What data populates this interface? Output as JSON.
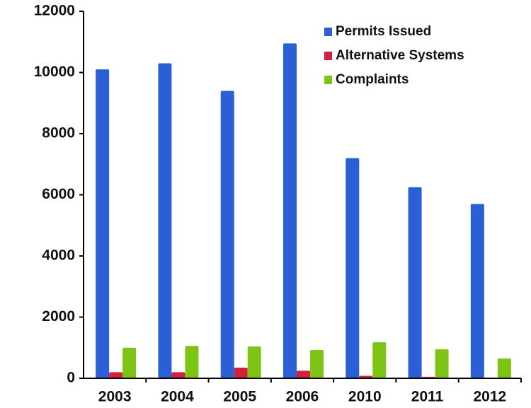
{
  "chart_data": {
    "type": "bar",
    "categories": [
      "2003",
      "2004",
      "2005",
      "2006",
      "2010",
      "2011",
      "2012"
    ],
    "series": [
      {
        "name": "Permits Issued",
        "color": "#2a5fd6",
        "values": [
          10100,
          10300,
          9400,
          10950,
          7200,
          6250,
          5700
        ]
      },
      {
        "name": "Alternative Systems",
        "color": "#d3203c",
        "values": [
          200,
          200,
          350,
          250,
          80,
          50,
          20
        ]
      },
      {
        "name": "Complaints",
        "color": "#7ec416",
        "values": [
          1000,
          1060,
          1040,
          925,
          1180,
          950,
          650
        ]
      }
    ],
    "ylim": [
      0,
      12000
    ],
    "yticks": [
      0,
      2000,
      4000,
      6000,
      8000,
      10000,
      12000
    ],
    "grid": false,
    "legend": "top-right"
  }
}
